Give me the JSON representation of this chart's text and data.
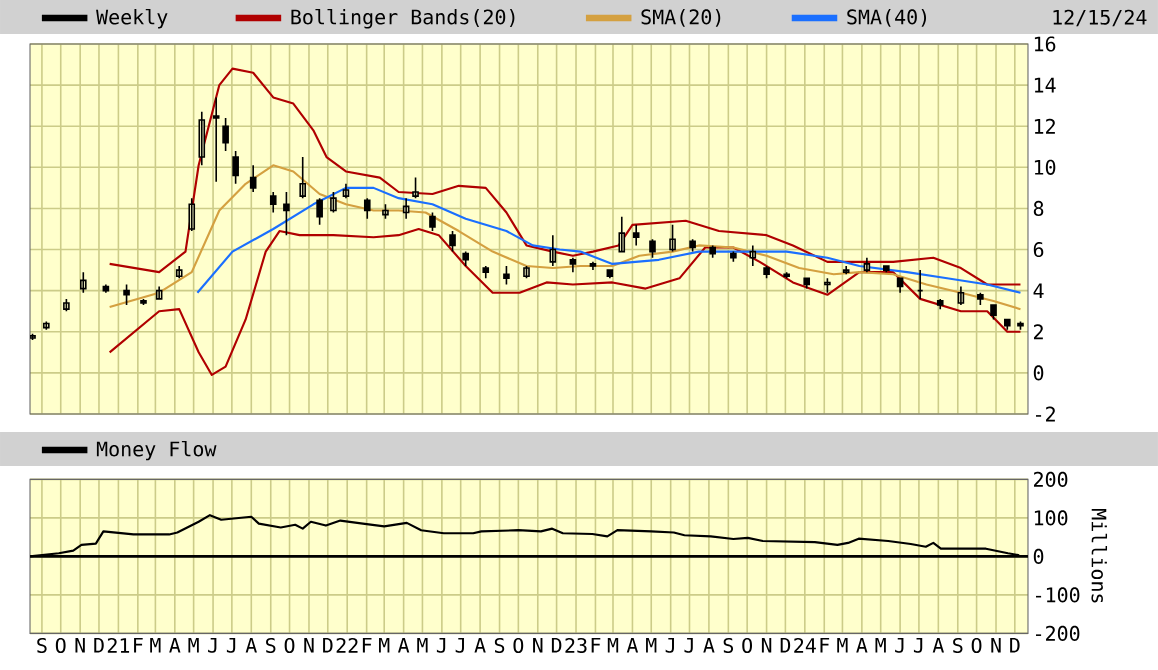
{
  "chart_data": [
    {
      "type": "candlestick",
      "tick_labels": "y",
      "grid": true,
      "legend": "top",
      "annotations": [
        "12/15/24"
      ],
      "xlim": [
        "2020-08-13",
        "2024-12-22"
      ],
      "ylim": [
        -2,
        16
      ],
      "yticks": [
        -2,
        0,
        2,
        4,
        6,
        8,
        10,
        12,
        14,
        16
      ],
      "xticks": [
        "2020-09-01",
        "2020-10-01",
        "2020-11-01",
        "2020-12-01",
        "2021-01-01",
        "2021-02-01",
        "2021-03-01",
        "2021-04-01",
        "2021-05-01",
        "2021-06-01",
        "2021-07-01",
        "2021-08-01",
        "2021-09-01",
        "2021-10-01",
        "2021-11-01",
        "2021-12-01",
        "2022-01-01",
        "2022-02-01",
        "2022-03-01",
        "2022-04-01",
        "2022-05-01",
        "2022-06-01",
        "2022-07-01",
        "2022-08-01",
        "2022-09-01",
        "2022-10-01",
        "2022-11-01",
        "2022-12-01",
        "2023-01-01",
        "2023-02-01",
        "2023-03-01",
        "2023-04-01",
        "2023-05-01",
        "2023-06-01",
        "2023-07-01",
        "2023-08-01",
        "2023-09-01",
        "2023-10-01",
        "2023-11-01",
        "2023-12-01",
        "2024-01-01",
        "2024-02-01",
        "2024-03-01",
        "2024-04-01",
        "2024-05-01",
        "2024-06-01",
        "2024-07-01",
        "2024-08-01",
        "2024-09-01",
        "2024-10-01",
        "2024-11-01",
        "2024-12-01"
      ],
      "series": [
        {
          "type": "candlestick",
          "name": "Weekly",
          "color": "#000000",
          "x": [
            "2020-08-17",
            "2020-09-08",
            "2020-10-10",
            "2020-11-06",
            "2020-12-12",
            "2021-01-14",
            "2021-02-10",
            "2021-03-07",
            "2021-04-08",
            "2021-04-28",
            "2021-05-14",
            "2021-06-06",
            "2021-06-21",
            "2021-07-07",
            "2021-08-04",
            "2021-09-05",
            "2021-09-26",
            "2021-10-22",
            "2021-11-18",
            "2021-12-10",
            "2021-12-30",
            "2022-02-02",
            "2022-03-03",
            "2022-04-05",
            "2022-04-20",
            "2022-05-17",
            "2022-06-18",
            "2022-07-09",
            "2022-08-10",
            "2022-09-12",
            "2022-10-14",
            "2022-11-25",
            "2022-12-27",
            "2023-01-28",
            "2023-02-24",
            "2023-03-15",
            "2023-04-07",
            "2023-05-03",
            "2023-06-04",
            "2023-07-06",
            "2023-08-07",
            "2023-09-09",
            "2023-10-10",
            "2023-11-01",
            "2023-12-03",
            "2024-01-04",
            "2024-02-06",
            "2024-03-07",
            "2024-04-09",
            "2024-05-10",
            "2024-06-01",
            "2024-07-03",
            "2024-08-04",
            "2024-09-06",
            "2024-10-07",
            "2024-10-28",
            "2024-11-19",
            "2024-12-10"
          ],
          "ohlc": [
            [
              1.7,
              1.9,
              1.6,
              1.8
            ],
            [
              2.2,
              2.5,
              2.1,
              2.4
            ],
            [
              3.1,
              3.6,
              3.0,
              3.4
            ],
            [
              4.1,
              4.9,
              3.9,
              4.5
            ],
            [
              4.2,
              4.3,
              3.9,
              4.0
            ],
            [
              4.0,
              4.3,
              3.3,
              3.8
            ],
            [
              3.5,
              3.6,
              3.3,
              3.4
            ],
            [
              3.6,
              4.2,
              3.6,
              4.0
            ],
            [
              4.7,
              5.2,
              4.6,
              5.0
            ],
            [
              7.0,
              8.5,
              6.9,
              8.2
            ],
            [
              10.5,
              12.7,
              10.1,
              12.3
            ],
            [
              12.5,
              13.4,
              9.3,
              12.4
            ],
            [
              12.0,
              12.4,
              10.8,
              11.2
            ],
            [
              10.5,
              10.8,
              9.2,
              9.6
            ],
            [
              9.5,
              10.1,
              8.8,
              9.0
            ],
            [
              8.6,
              8.8,
              7.8,
              8.2
            ],
            [
              8.2,
              8.8,
              6.7,
              7.9
            ],
            [
              8.6,
              10.5,
              8.5,
              9.2
            ],
            [
              8.4,
              8.5,
              7.2,
              7.6
            ],
            [
              7.9,
              8.8,
              7.8,
              8.5
            ],
            [
              8.6,
              9.2,
              8.5,
              8.9
            ],
            [
              8.4,
              8.5,
              7.5,
              7.9
            ],
            [
              7.7,
              8.2,
              7.5,
              7.9
            ],
            [
              7.8,
              8.5,
              7.5,
              8.1
            ],
            [
              8.6,
              9.5,
              8.5,
              8.8
            ],
            [
              7.6,
              7.8,
              6.9,
              7.1
            ],
            [
              6.7,
              6.9,
              5.9,
              6.2
            ],
            [
              5.8,
              5.9,
              5.2,
              5.5
            ],
            [
              5.1,
              5.2,
              4.6,
              4.9
            ],
            [
              4.8,
              5.2,
              4.3,
              4.6
            ],
            [
              4.7,
              5.2,
              4.6,
              5.1
            ],
            [
              5.4,
              6.7,
              5.2,
              6.0
            ],
            [
              5.5,
              5.6,
              4.9,
              5.3
            ],
            [
              5.3,
              5.4,
              5.0,
              5.2
            ],
            [
              5.0,
              5.0,
              4.6,
              4.7
            ],
            [
              5.9,
              7.6,
              5.9,
              6.8
            ],
            [
              6.8,
              7.2,
              6.2,
              6.6
            ],
            [
              6.4,
              6.5,
              5.6,
              5.9
            ],
            [
              6.0,
              7.2,
              5.9,
              6.5
            ],
            [
              6.4,
              6.5,
              5.9,
              6.1
            ],
            [
              6.1,
              6.2,
              5.6,
              5.8
            ],
            [
              5.8,
              5.9,
              5.4,
              5.6
            ],
            [
              5.6,
              6.2,
              5.2,
              5.9
            ],
            [
              5.1,
              5.2,
              4.6,
              4.8
            ],
            [
              4.8,
              4.9,
              4.6,
              4.7
            ],
            [
              4.6,
              4.6,
              4.1,
              4.3
            ],
            [
              4.3,
              4.6,
              3.9,
              4.4
            ],
            [
              4.9,
              5.2,
              4.8,
              5.0
            ],
            [
              5.0,
              5.6,
              4.9,
              5.3
            ],
            [
              5.2,
              5.2,
              4.9,
              5.0
            ],
            [
              4.6,
              4.6,
              3.9,
              4.2
            ],
            [
              4.0,
              5.0,
              3.6,
              4.0
            ],
            [
              3.5,
              3.6,
              3.1,
              3.3
            ],
            [
              3.4,
              4.2,
              3.3,
              3.9
            ],
            [
              3.8,
              3.9,
              3.3,
              3.6
            ],
            [
              3.3,
              3.3,
              2.6,
              2.8
            ],
            [
              2.6,
              2.6,
              2.1,
              2.3
            ],
            [
              2.4,
              2.5,
              2.1,
              2.3
            ]
          ]
        },
        {
          "type": "line",
          "name": "Bollinger Bands(20)",
          "color": "#b00000",
          "x": [
            "2020-12-18",
            "2021-03-07",
            "2021-04-18",
            "2021-05-09",
            "2021-06-11",
            "2021-07-02",
            "2021-08-04",
            "2021-09-05",
            "2021-10-07",
            "2021-11-08",
            "2021-11-29",
            "2021-12-30",
            "2022-02-22",
            "2022-03-24",
            "2022-05-17",
            "2022-06-28",
            "2022-08-10",
            "2022-09-12",
            "2022-10-14",
            "2022-11-25",
            "2022-12-27",
            "2023-01-28",
            "2023-03-10",
            "2023-04-01",
            "2023-06-25",
            "2023-08-17",
            "2023-11-01",
            "2023-12-13",
            "2024-02-06",
            "2024-03-28",
            "2024-05-21",
            "2024-07-24",
            "2024-09-06",
            "2024-10-18",
            "2024-12-10"
          ],
          "values": [
            5.3,
            4.9,
            5.9,
            10.1,
            14.0,
            14.8,
            14.6,
            13.4,
            13.1,
            11.8,
            10.5,
            9.8,
            9.5,
            8.8,
            8.7,
            9.1,
            9.0,
            7.8,
            6.2,
            5.9,
            5.7,
            5.9,
            6.2,
            7.2,
            7.4,
            6.9,
            6.7,
            6.2,
            5.4,
            5.4,
            5.4,
            5.6,
            5.1,
            4.3,
            4.3
          ]
        },
        {
          "type": "line",
          "color": "#b00000",
          "x": [
            "2020-12-18",
            "2021-03-07",
            "2021-04-08",
            "2021-05-09",
            "2021-05-30",
            "2021-06-21",
            "2021-07-23",
            "2021-08-24",
            "2021-09-15",
            "2021-10-17",
            "2021-12-10",
            "2022-02-12",
            "2022-03-24",
            "2022-04-25",
            "2022-05-27",
            "2022-07-09",
            "2022-08-21",
            "2022-10-03",
            "2022-11-15",
            "2022-12-27",
            "2023-02-28",
            "2023-04-22",
            "2023-06-15",
            "2023-07-26",
            "2023-09-09",
            "2023-10-21",
            "2023-12-13",
            "2024-02-06",
            "2024-03-28",
            "2024-05-21",
            "2024-07-03",
            "2024-09-06",
            "2024-10-18",
            "2024-11-19",
            "2024-12-10"
          ],
          "values": [
            1.0,
            3.0,
            3.1,
            1.0,
            -0.1,
            0.3,
            2.6,
            5.9,
            6.9,
            6.7,
            6.7,
            6.6,
            6.7,
            7.0,
            6.7,
            5.2,
            3.9,
            3.9,
            4.4,
            4.3,
            4.4,
            4.1,
            4.6,
            6.1,
            6.1,
            5.4,
            4.4,
            3.8,
            4.9,
            4.9,
            3.6,
            3.0,
            3.0,
            2.0,
            2.0
          ]
        },
        {
          "type": "line",
          "name": "SMA(20)",
          "color": "#d4a040",
          "x": [
            "2020-12-18",
            "2021-03-07",
            "2021-04-28",
            "2021-06-11",
            "2021-07-23",
            "2021-09-05",
            "2021-10-07",
            "2021-11-18",
            "2021-12-30",
            "2022-02-12",
            "2022-03-24",
            "2022-05-06",
            "2022-06-28",
            "2022-08-21",
            "2022-10-14",
            "2022-11-25",
            "2023-01-08",
            "2023-02-28",
            "2023-04-12",
            "2023-06-04",
            "2023-07-16",
            "2023-09-09",
            "2023-11-01",
            "2023-12-23",
            "2024-02-16",
            "2024-03-28",
            "2024-05-21",
            "2024-07-13",
            "2024-09-06",
            "2024-10-28",
            "2024-12-10"
          ],
          "values": [
            3.2,
            3.9,
            4.9,
            7.9,
            9.2,
            10.1,
            9.8,
            8.7,
            8.2,
            7.9,
            7.9,
            7.8,
            6.9,
            5.9,
            5.2,
            5.1,
            5.2,
            5.2,
            5.7,
            5.9,
            6.2,
            6.1,
            5.7,
            5.1,
            4.8,
            4.9,
            4.8,
            4.3,
            3.9,
            3.5,
            3.1
          ]
        },
        {
          "type": "line",
          "name": "SMA(40)",
          "color": "#1a6fff",
          "x": [
            "2021-05-07",
            "2021-07-02",
            "2021-09-05",
            "2021-11-08",
            "2021-12-30",
            "2022-02-12",
            "2022-03-24",
            "2022-05-17",
            "2022-07-09",
            "2022-09-12",
            "2022-10-24",
            "2022-12-06",
            "2023-01-08",
            "2023-02-28",
            "2023-05-13",
            "2023-07-16",
            "2023-09-29",
            "2023-12-03",
            "2024-02-06",
            "2024-03-28",
            "2024-06-12",
            "2024-08-15",
            "2024-10-18",
            "2024-12-10"
          ],
          "values": [
            3.9,
            5.9,
            7.0,
            8.2,
            9.0,
            9.0,
            8.5,
            8.2,
            7.5,
            6.9,
            6.2,
            6.0,
            5.9,
            5.3,
            5.5,
            5.9,
            5.9,
            5.9,
            5.6,
            5.2,
            4.9,
            4.6,
            4.3,
            3.9
          ]
        }
      ]
    },
    {
      "type": "line",
      "grid": true,
      "legend": "top left",
      "ylabel": "Millions",
      "xlim": [
        "2020-08-13",
        "2024-12-22"
      ],
      "ylim": [
        -200,
        200
      ],
      "yticks": [
        -200,
        -100,
        0,
        100,
        200
      ],
      "xticks": [
        {
          "value": "2020-09-01",
          "label": "S"
        },
        {
          "value": "2020-10-01",
          "label": "O"
        },
        {
          "value": "2020-11-01",
          "label": "N"
        },
        {
          "value": "2020-12-01",
          "label": "D"
        },
        {
          "value": "2021-01-01",
          "label": "21"
        },
        {
          "value": "2021-02-01",
          "label": "F"
        },
        {
          "value": "2021-03-01",
          "label": "M"
        },
        {
          "value": "2021-04-01",
          "label": "A"
        },
        {
          "value": "2021-05-01",
          "label": "M"
        },
        {
          "value": "2021-06-01",
          "label": "J"
        },
        {
          "value": "2021-07-01",
          "label": "J"
        },
        {
          "value": "2021-08-01",
          "label": "A"
        },
        {
          "value": "2021-09-01",
          "label": "S"
        },
        {
          "value": "2021-10-01",
          "label": "O"
        },
        {
          "value": "2021-11-01",
          "label": "N"
        },
        {
          "value": "2021-12-01",
          "label": "D"
        },
        {
          "value": "2022-01-01",
          "label": "22"
        },
        {
          "value": "2022-02-01",
          "label": "F"
        },
        {
          "value": "2022-03-01",
          "label": "M"
        },
        {
          "value": "2022-04-01",
          "label": "A"
        },
        {
          "value": "2022-05-01",
          "label": "M"
        },
        {
          "value": "2022-06-01",
          "label": "J"
        },
        {
          "value": "2022-07-01",
          "label": "J"
        },
        {
          "value": "2022-08-01",
          "label": "A"
        },
        {
          "value": "2022-09-01",
          "label": "S"
        },
        {
          "value": "2022-10-01",
          "label": "O"
        },
        {
          "value": "2022-11-01",
          "label": "N"
        },
        {
          "value": "2022-12-01",
          "label": "D"
        },
        {
          "value": "2023-01-01",
          "label": "23"
        },
        {
          "value": "2023-02-01",
          "label": "F"
        },
        {
          "value": "2023-03-01",
          "label": "M"
        },
        {
          "value": "2023-04-01",
          "label": "A"
        },
        {
          "value": "2023-05-01",
          "label": "M"
        },
        {
          "value": "2023-06-01",
          "label": "J"
        },
        {
          "value": "2023-07-01",
          "label": "J"
        },
        {
          "value": "2023-08-01",
          "label": "A"
        },
        {
          "value": "2023-09-01",
          "label": "S"
        },
        {
          "value": "2023-10-01",
          "label": "O"
        },
        {
          "value": "2023-11-01",
          "label": "N"
        },
        {
          "value": "2023-12-01",
          "label": "D"
        },
        {
          "value": "2024-01-01",
          "label": "24"
        },
        {
          "value": "2024-02-01",
          "label": "F"
        },
        {
          "value": "2024-03-01",
          "label": "M"
        },
        {
          "value": "2024-04-01",
          "label": "A"
        },
        {
          "value": "2024-05-01",
          "label": "M"
        },
        {
          "value": "2024-06-01",
          "label": "J"
        },
        {
          "value": "2024-07-01",
          "label": "J"
        },
        {
          "value": "2024-08-01",
          "label": "A"
        },
        {
          "value": "2024-09-01",
          "label": "S"
        },
        {
          "value": "2024-10-01",
          "label": "O"
        },
        {
          "value": "2024-11-01",
          "label": "N"
        },
        {
          "value": "2024-12-01",
          "label": "D"
        }
      ],
      "ref_lines": [
        {
          "axis": "y",
          "value": 0,
          "color": "#000000"
        }
      ],
      "series": [
        {
          "name": "Money Flow",
          "color": "#000000",
          "x": [
            "2020-08-13",
            "2020-09-28",
            "2020-10-21",
            "2020-11-03",
            "2020-11-26",
            "2020-12-08",
            "2021-01-25",
            "2021-03-23",
            "2021-04-05",
            "2021-05-09",
            "2021-05-27",
            "2021-06-14",
            "2021-08-01",
            "2021-08-13",
            "2021-09-17",
            "2021-10-10",
            "2021-10-22",
            "2021-11-04",
            "2021-11-28",
            "2021-12-21",
            "2022-01-26",
            "2022-03-01",
            "2022-04-06",
            "2022-04-29",
            "2022-06-04",
            "2022-07-21",
            "2022-08-03",
            "2022-10-01",
            "2022-11-06",
            "2022-11-24",
            "2022-12-11",
            "2023-01-27",
            "2023-02-20",
            "2023-03-08",
            "2023-05-01",
            "2023-06-06",
            "2023-06-23",
            "2023-08-04",
            "2023-09-09",
            "2023-10-02",
            "2023-10-26",
            "2024-01-17",
            "2024-02-22",
            "2024-03-10",
            "2024-03-27",
            "2024-05-13",
            "2024-06-18",
            "2024-07-12",
            "2024-07-24",
            "2024-08-05",
            "2024-10-16",
            "2024-11-20",
            "2024-12-08"
          ],
          "values": [
            0,
            8,
            15,
            30,
            33,
            65,
            57,
            57,
            62,
            90,
            107,
            95,
            103,
            85,
            75,
            82,
            72,
            90,
            80,
            93,
            85,
            78,
            87,
            68,
            60,
            60,
            65,
            68,
            65,
            72,
            60,
            58,
            52,
            68,
            65,
            62,
            55,
            52,
            45,
            48,
            40,
            37,
            30,
            35,
            46,
            40,
            32,
            25,
            35,
            20,
            20,
            8,
            3
          ]
        }
      ]
    }
  ]
}
